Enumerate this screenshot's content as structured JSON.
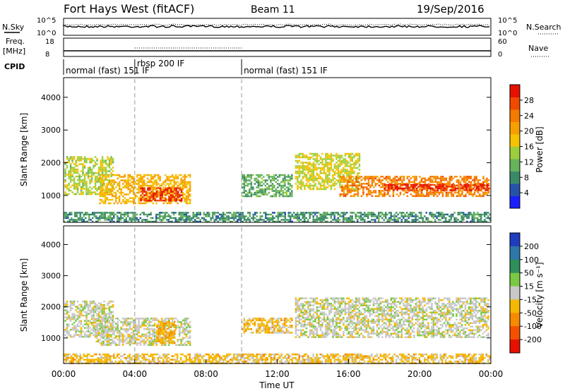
{
  "header": {
    "station": "Fort Hays West (fitACF)",
    "beam": "Beam 11",
    "date": "19/Sep/2016"
  },
  "noise_panel": {
    "left_label": "N.Sky",
    "right_label": "N.Search",
    "left_ticks": [
      "10^5",
      "10^0"
    ],
    "right_ticks": [
      "10^5",
      "10^0"
    ]
  },
  "freq_panel": {
    "left_label_1": "Freq.",
    "left_label_2": "[MHz]",
    "right_label": "Nave",
    "left_ticks": [
      "18",
      "8"
    ],
    "right_ticks": [
      "60",
      "0"
    ]
  },
  "cpid": {
    "label": "CPID",
    "segments": [
      {
        "start_hour": 0,
        "end_hour": 4,
        "text": "normal (fast) 151 IF"
      },
      {
        "start_hour": 4,
        "end_hour": 10,
        "text": "rbsp 200 IF"
      },
      {
        "start_hour": 10,
        "end_hour": 24,
        "text": "normal (fast) 151 IF"
      }
    ]
  },
  "colorbars": {
    "power": {
      "title": "Power [dB]",
      "ticks": [
        "4",
        "8",
        "12",
        "16",
        "20",
        "24",
        "28"
      ],
      "colors": [
        "#1a20ff",
        "#2653a8",
        "#3a8a6a",
        "#66b35a",
        "#9ccf3c",
        "#f5c200",
        "#f5a000",
        "#f57a00",
        "#f04a00",
        "#e61000"
      ]
    },
    "velocity": {
      "title": "Velocity [m s⁻¹]",
      "ticks": [
        "200",
        "100",
        "50",
        "15",
        "-15",
        "-50",
        "-100",
        "-200"
      ],
      "colors": [
        "#1f3dbf",
        "#2f77a8",
        "#2e8f5a",
        "#7ac943",
        "#c8c8c8",
        "#f5b800",
        "#f58b00",
        "#f55000",
        "#e61000"
      ]
    }
  },
  "x_axis": {
    "label": "Time UT",
    "ticks": [
      "00:00",
      "04:00",
      "08:00",
      "12:00",
      "16:00",
      "20:00",
      "00:00"
    ]
  },
  "y_axis": {
    "label": "Slant Range [km]",
    "ticks": [
      "1000",
      "2000",
      "3000",
      "4000"
    ]
  },
  "chart_data": [
    {
      "type": "heatmap",
      "name": "power",
      "xlim_hours": [
        0,
        24
      ],
      "ylim_km": [
        180,
        4600
      ],
      "clim": [
        0,
        30
      ],
      "blobs": [
        {
          "t0": 0.05,
          "t1": 2.75,
          "r0": 1050,
          "r1": 2200,
          "v": 14
        },
        {
          "t0": 2.0,
          "t1": 7.1,
          "r0": 750,
          "r1": 1650,
          "v": 18
        },
        {
          "t0": 4.3,
          "t1": 6.6,
          "r0": 850,
          "r1": 1250,
          "v": 27
        },
        {
          "t0": 10.0,
          "t1": 12.8,
          "r0": 950,
          "r1": 1650,
          "v": 10
        },
        {
          "t0": 13.0,
          "t1": 16.6,
          "r0": 1200,
          "r1": 2300,
          "v": 15
        },
        {
          "t0": 15.5,
          "t1": 23.9,
          "r0": 1000,
          "r1": 1600,
          "v": 22
        },
        {
          "t0": 18.0,
          "t1": 23.9,
          "r0": 1150,
          "r1": 1350,
          "v": 28
        },
        {
          "t0": 0.0,
          "t1": 24.0,
          "r0": 200,
          "r1": 500,
          "v": 8
        }
      ]
    },
    {
      "type": "heatmap",
      "name": "velocity",
      "xlim_hours": [
        0,
        24
      ],
      "ylim_km": [
        180,
        4600
      ],
      "clim": [
        -200,
        200
      ],
      "blobs": [
        {
          "t0": 0.05,
          "t1": 2.75,
          "r0": 1050,
          "r1": 2200,
          "v": 0
        },
        {
          "t0": 1.8,
          "t1": 7.1,
          "r0": 750,
          "r1": 1650,
          "v": 0
        },
        {
          "t0": 5.2,
          "t1": 6.2,
          "r0": 850,
          "r1": 1550,
          "v": -60
        },
        {
          "t0": 10.0,
          "t1": 12.8,
          "r0": 1150,
          "r1": 1650,
          "v": -40
        },
        {
          "t0": 13.0,
          "t1": 23.9,
          "r0": 1050,
          "r1": 2300,
          "v": 0
        },
        {
          "t0": 0.0,
          "t1": 24.0,
          "r0": 200,
          "r1": 500,
          "v": -40
        }
      ]
    }
  ]
}
